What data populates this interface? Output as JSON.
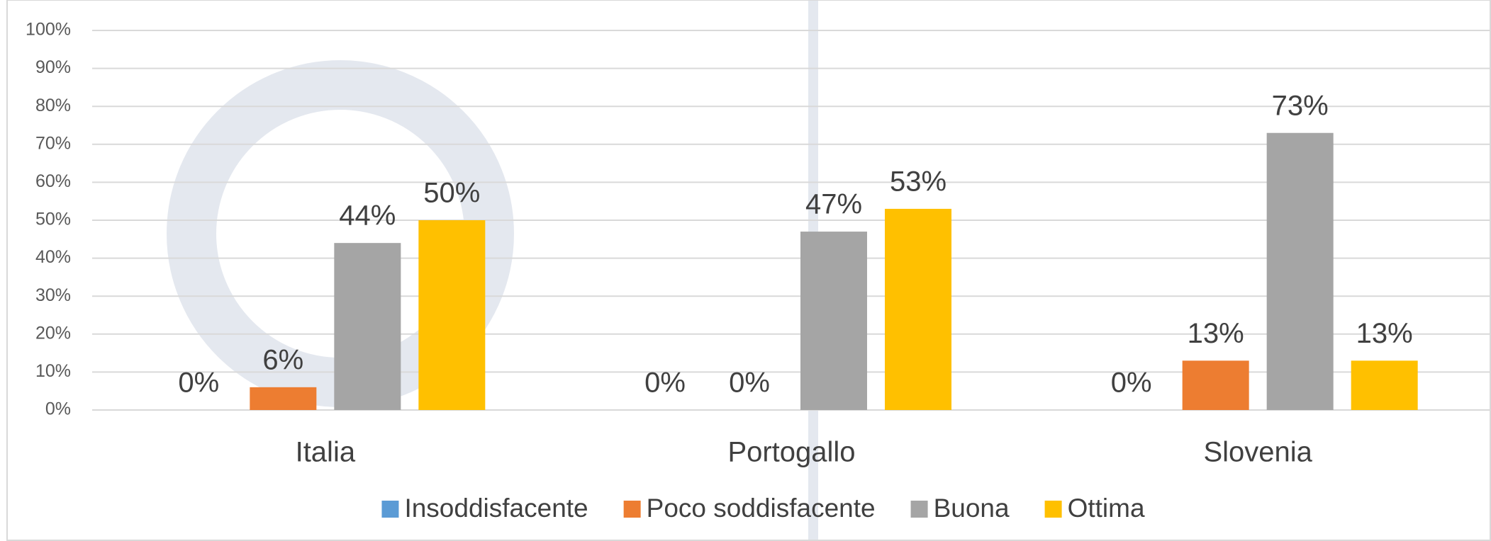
{
  "chart_data": {
    "type": "bar",
    "categories": [
      "Italia",
      "Portogallo",
      "Slovenia"
    ],
    "series": [
      {
        "name": "Insoddisfacente",
        "color": "#5b9bd5",
        "values": [
          0,
          0,
          0
        ],
        "value_labels": [
          "0%",
          "0%",
          "0%"
        ]
      },
      {
        "name": "Poco soddisfacente",
        "color": "#ed7d31",
        "values": [
          6,
          0,
          13
        ],
        "value_labels": [
          "6%",
          "0%",
          "13%"
        ]
      },
      {
        "name": "Buona",
        "color": "#a5a5a5",
        "values": [
          44,
          47,
          73
        ],
        "value_labels": [
          "44%",
          "47%",
          "73%"
        ]
      },
      {
        "name": "Ottima",
        "color": "#ffc000",
        "values": [
          50,
          53,
          13
        ],
        "value_labels": [
          "50%",
          "53%",
          "13%"
        ]
      }
    ],
    "ylim": [
      0,
      100
    ],
    "yticks": [
      {
        "value": 0,
        "label": "0%"
      },
      {
        "value": 10,
        "label": "10%"
      },
      {
        "value": 20,
        "label": "20%"
      },
      {
        "value": 30,
        "label": "30%"
      },
      {
        "value": 40,
        "label": "40%"
      },
      {
        "value": 50,
        "label": "50%"
      },
      {
        "value": 60,
        "label": "60%"
      },
      {
        "value": 70,
        "label": "70%"
      },
      {
        "value": 80,
        "label": "80%"
      },
      {
        "value": 90,
        "label": "90%"
      },
      {
        "value": 100,
        "label": "100%"
      }
    ],
    "grid": true,
    "legend": "bottom"
  }
}
